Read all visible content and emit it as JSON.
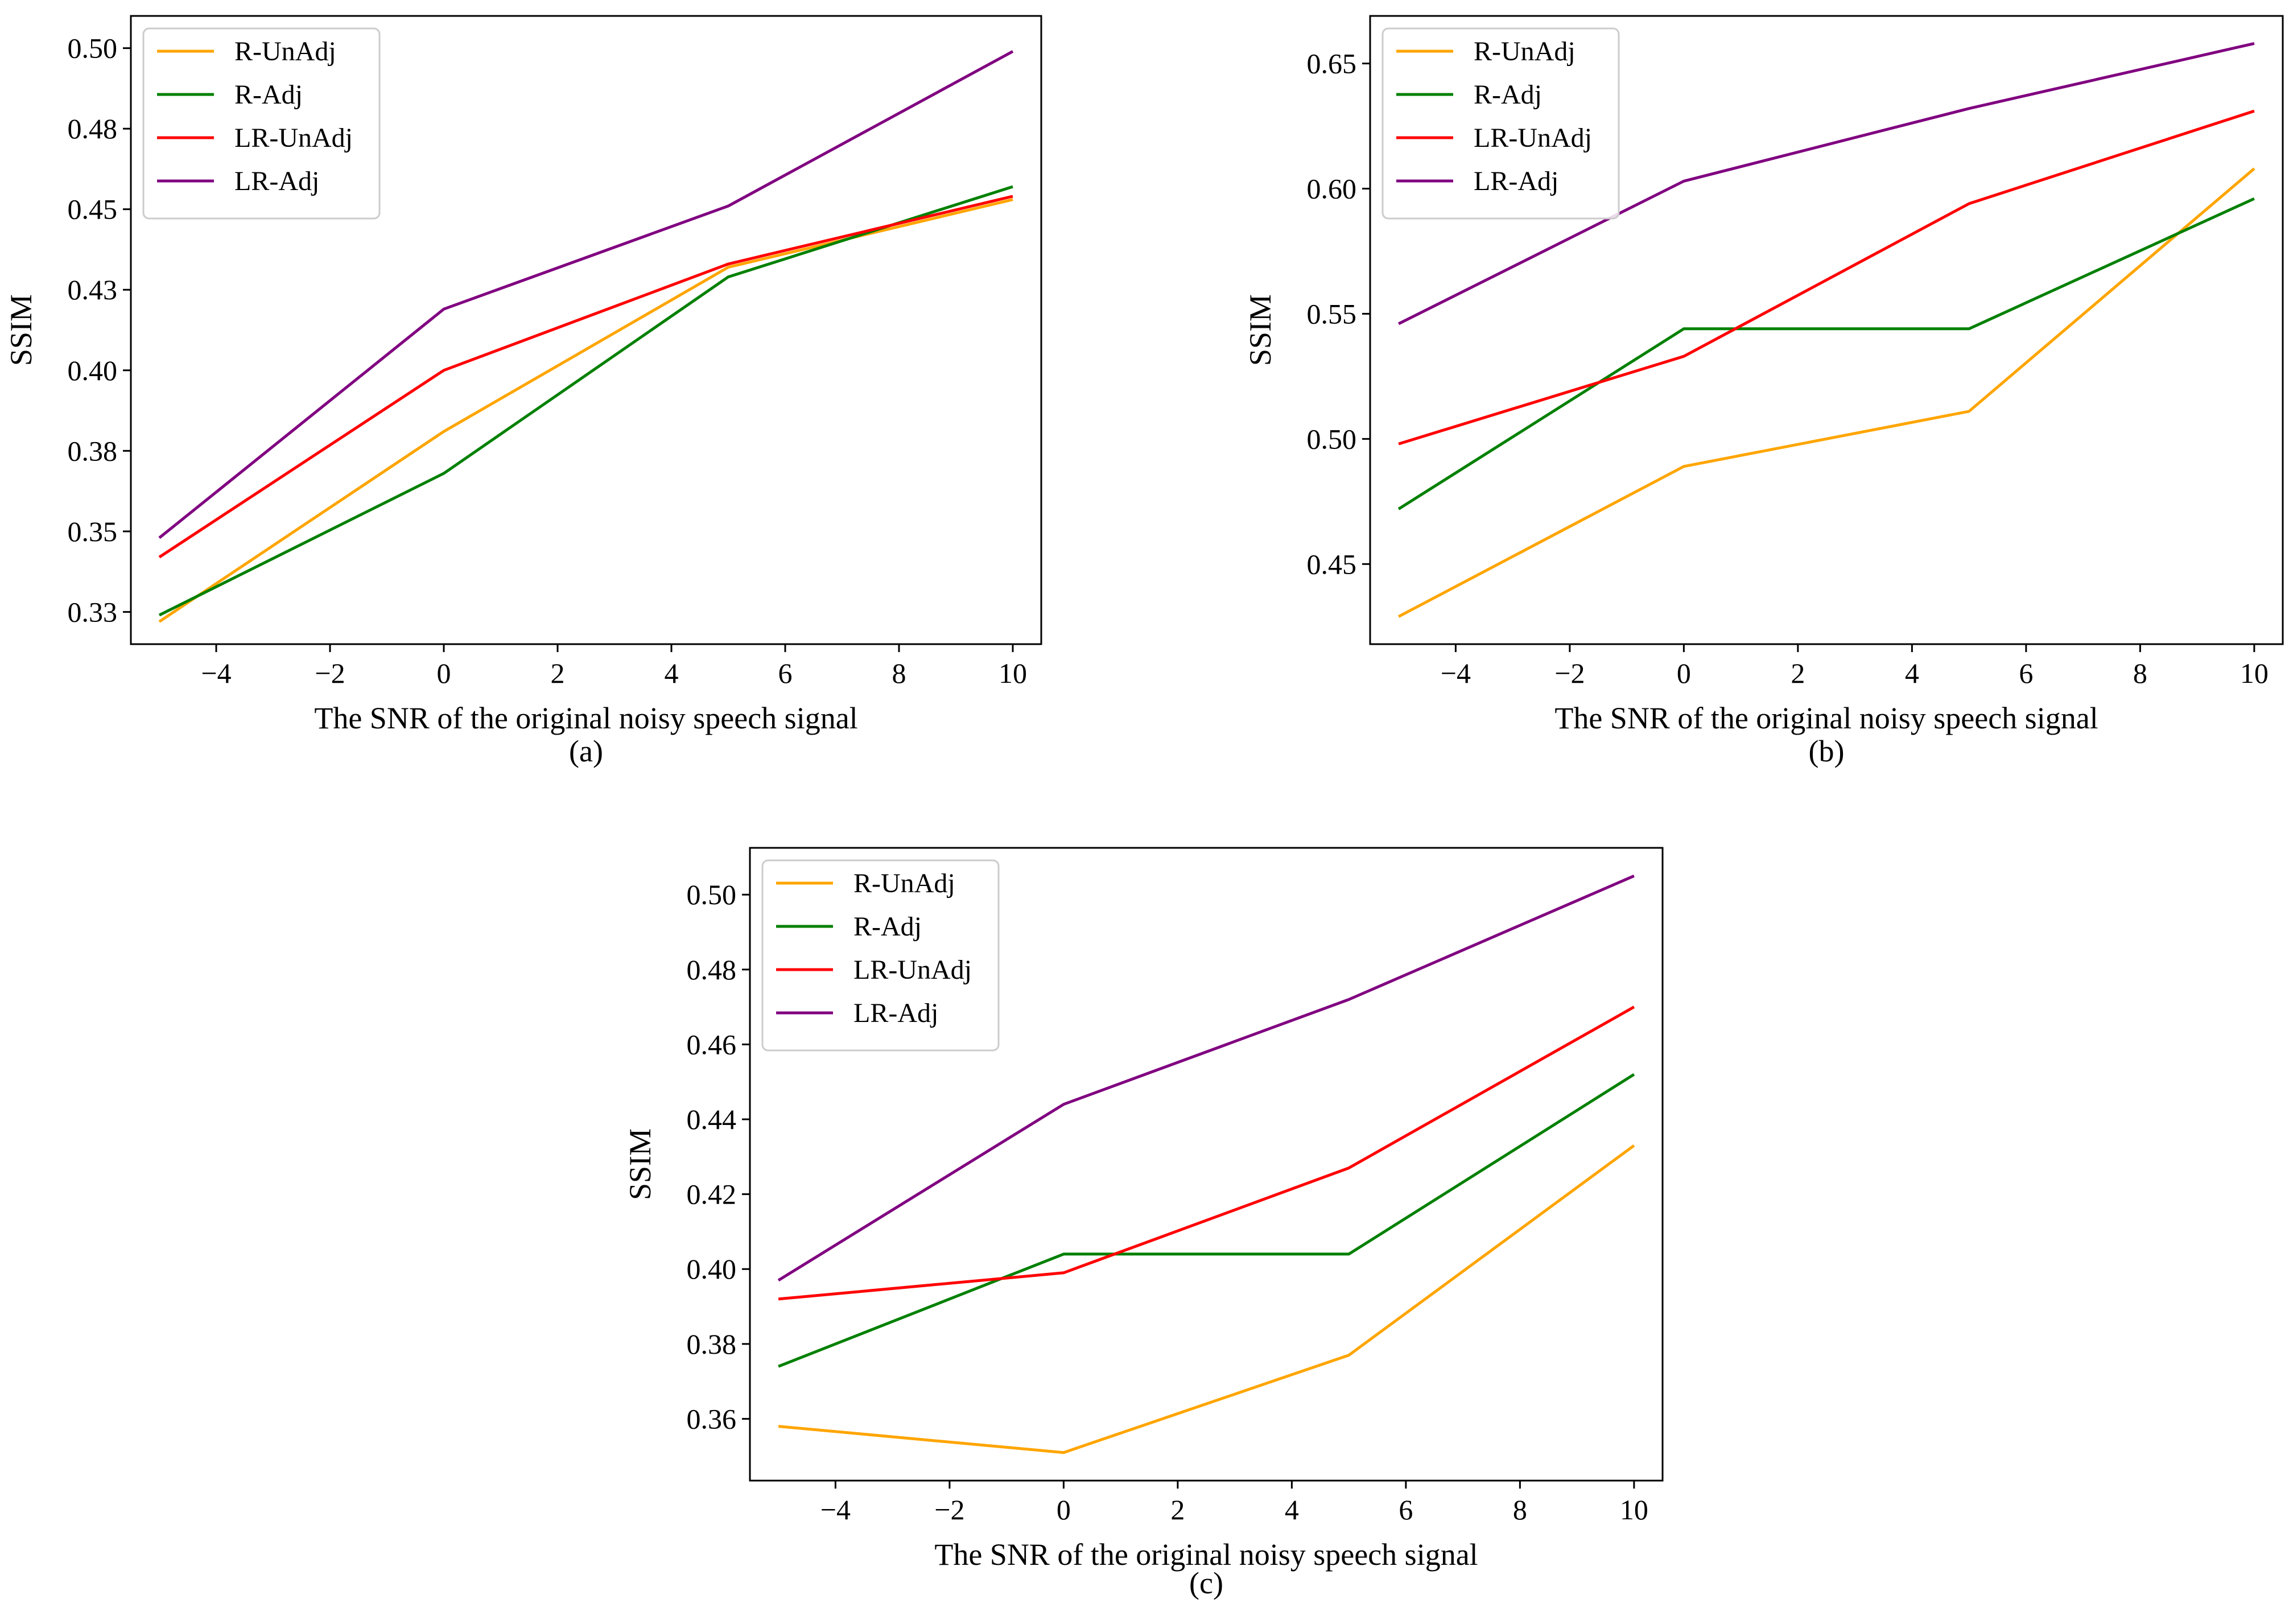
{
  "figure": {
    "caption_labels": [
      "(a)",
      "(b)",
      "(c)"
    ]
  },
  "chart_data": [
    {
      "type": "line",
      "panel": "(a)",
      "xlabel": "The SNR of the original noisy speech signal",
      "ylabel": "SSIM",
      "x": [
        -5,
        0,
        5,
        10
      ],
      "xlim": [
        -5.5,
        10.5
      ],
      "ylim": [
        0.315,
        0.51
      ],
      "xticks": [
        -4,
        -2,
        0,
        2,
        4,
        6,
        8,
        10
      ],
      "xtick_labels": [
        "−4",
        "−2",
        "0",
        "2",
        "4",
        "6",
        "8",
        "10"
      ],
      "yticks": [
        0.325,
        0.35,
        0.375,
        0.4,
        0.425,
        0.45,
        0.475,
        0.5
      ],
      "ytick_labels": [
        "0.33",
        "0.35",
        "0.38",
        "0.40",
        "0.43",
        "0.45",
        "0.48",
        "0.50"
      ],
      "legend_position": "top-left",
      "series": [
        {
          "name": "R-UnAdj",
          "color": "#FFA500",
          "values": [
            0.322,
            0.381,
            0.432,
            0.453
          ]
        },
        {
          "name": "R-Adj",
          "color": "#008000",
          "values": [
            0.324,
            0.368,
            0.429,
            0.457
          ]
        },
        {
          "name": "LR-UnAdj",
          "color": "#FF0000",
          "values": [
            0.342,
            0.4,
            0.433,
            0.454
          ]
        },
        {
          "name": "LR-Adj",
          "color": "#800080",
          "values": [
            0.348,
            0.419,
            0.451,
            0.499
          ]
        }
      ]
    },
    {
      "type": "line",
      "panel": "(b)",
      "xlabel": "The SNR of the original noisy speech signal",
      "ylabel": "SSIM",
      "x": [
        -5,
        0,
        5,
        10
      ],
      "xlim": [
        -5.5,
        10.5
      ],
      "ylim": [
        0.418,
        0.669
      ],
      "xticks": [
        -4,
        -2,
        0,
        2,
        4,
        6,
        8,
        10
      ],
      "xtick_labels": [
        "−4",
        "−2",
        "0",
        "2",
        "4",
        "6",
        "8",
        "10"
      ],
      "yticks": [
        0.45,
        0.5,
        0.55,
        0.6,
        0.65
      ],
      "ytick_labels": [
        "0.45",
        "0.50",
        "0.55",
        "0.60",
        "0.65"
      ],
      "legend_position": "top-left",
      "series": [
        {
          "name": "R-UnAdj",
          "color": "#FFA500",
          "values": [
            0.429,
            0.489,
            0.511,
            0.608
          ]
        },
        {
          "name": "R-Adj",
          "color": "#008000",
          "values": [
            0.472,
            0.544,
            0.544,
            0.596
          ]
        },
        {
          "name": "LR-UnAdj",
          "color": "#FF0000",
          "values": [
            0.498,
            0.533,
            0.594,
            0.631
          ]
        },
        {
          "name": "LR-Adj",
          "color": "#800080",
          "values": [
            0.546,
            0.603,
            0.632,
            0.658
          ]
        }
      ]
    },
    {
      "type": "line",
      "panel": "(c)",
      "xlabel": "The SNR of the original noisy speech signal",
      "ylabel": "SSIM",
      "x": [
        -5,
        0,
        5,
        10
      ],
      "xlim": [
        -5.5,
        10.5
      ],
      "ylim": [
        0.3435,
        0.5125
      ],
      "xticks": [
        -4,
        -2,
        0,
        2,
        4,
        6,
        8,
        10
      ],
      "xtick_labels": [
        "−4",
        "−2",
        "0",
        "2",
        "4",
        "6",
        "8",
        "10"
      ],
      "yticks": [
        0.36,
        0.38,
        0.4,
        0.42,
        0.44,
        0.46,
        0.48,
        0.5
      ],
      "ytick_labels": [
        "0.36",
        "0.38",
        "0.40",
        "0.42",
        "0.44",
        "0.46",
        "0.48",
        "0.50"
      ],
      "legend_position": "top-left",
      "series": [
        {
          "name": "R-UnAdj",
          "color": "#FFA500",
          "values": [
            0.358,
            0.351,
            0.377,
            0.433
          ]
        },
        {
          "name": "R-Adj",
          "color": "#008000",
          "values": [
            0.374,
            0.404,
            0.404,
            0.452
          ]
        },
        {
          "name": "LR-UnAdj",
          "color": "#FF0000",
          "values": [
            0.392,
            0.399,
            0.427,
            0.47
          ]
        },
        {
          "name": "LR-Adj",
          "color": "#800080",
          "values": [
            0.397,
            0.444,
            0.472,
            0.505
          ]
        }
      ]
    }
  ]
}
